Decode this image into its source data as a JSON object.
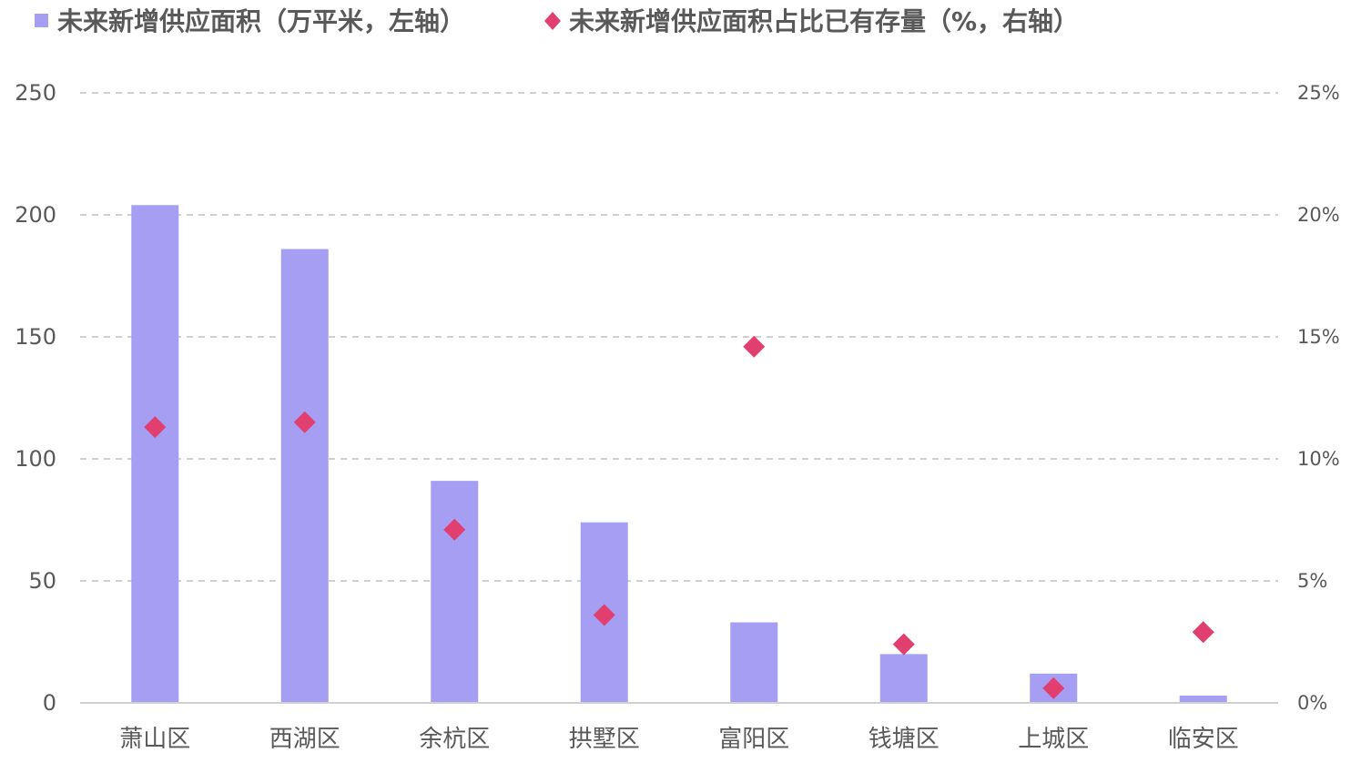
{
  "chart_data": {
    "type": "bar",
    "categories": [
      "萧山区",
      "西湖区",
      "余杭区",
      "拱墅区",
      "富阳区",
      "钱塘区",
      "上城区",
      "临安区"
    ],
    "series": [
      {
        "name": "未来新增供应面积（万平米，左轴）",
        "type": "bar",
        "axis": "left",
        "color": "#a59ef2",
        "values": [
          204,
          186,
          91,
          74,
          33,
          20,
          12,
          3
        ]
      },
      {
        "name": "未来新增供应面积占比已有存量（%，右轴）",
        "type": "scatter",
        "marker": "diamond",
        "axis": "right",
        "color": "#e03f6f",
        "values": [
          11.3,
          11.5,
          7.1,
          3.6,
          14.6,
          2.4,
          0.6,
          2.9
        ]
      }
    ],
    "y_left": {
      "ylim": [
        0,
        250
      ],
      "ticks": [
        "0",
        "50",
        "100",
        "150",
        "200",
        "250"
      ]
    },
    "y_right": {
      "ylim": [
        0,
        25
      ],
      "ticks": [
        "0%",
        "5%",
        "10%",
        "15%",
        "20%",
        "25%"
      ]
    },
    "grid": true,
    "legend_position": "top-left"
  }
}
